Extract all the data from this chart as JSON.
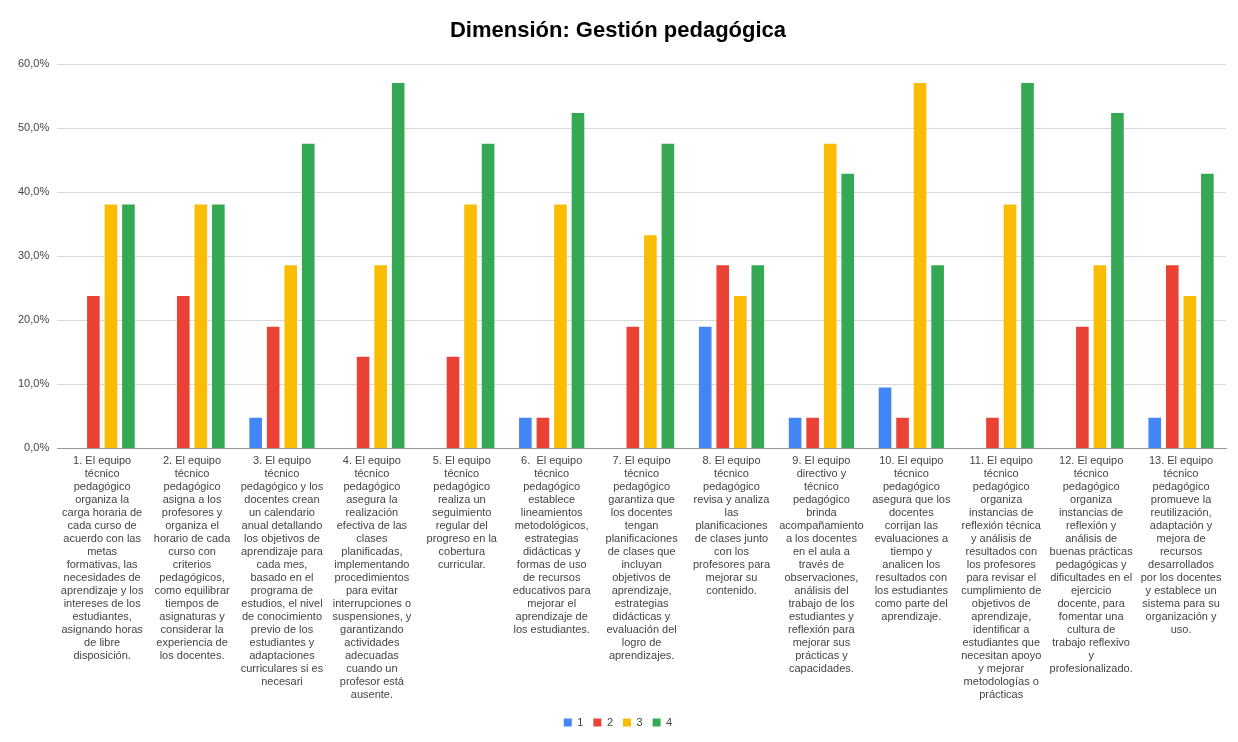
{
  "chart_data": {
    "type": "bar",
    "title": "Dimensión: Gestión pedagógica",
    "categories": [
      "1. El equipo técnico pedagógico organiza la carga horaria de cada curso de acuerdo con las metas formativas, las necesidades de aprendizaje y los intereses de los estudiantes, asignando horas de libre disposición.",
      "2. El equipo técnico pedagógico asigna a los profesores y organiza el horario de cada curso con criterios pedagógicos, como equilibrar tiempos de asignaturas y considerar la experiencia de los docentes.",
      "3. El equipo técnico pedagógico y los docentes crean un calendario anual detallando los objetivos de aprendizaje para cada mes, basado en el programa de estudios, el nivel de conocimiento previo de los estudiantes y adaptaciones curriculares si es necesari",
      "4. El equipo técnico pedagógico asegura la realización efectiva de las clases planificadas, implementando procedimientos para evitar interrupciones o suspensiones, y garantizando actividades adecuadas cuando un profesor está ausente.",
      "5. El equipo técnico pedagógico realiza un seguimiento regular del progreso en la cobertura curricular.",
      "6.  El equipo técnico pedagógico establece lineamientos metodológicos, estrategias didácticas y formas de uso de recursos educativos para mejorar el aprendizaje de los estudiantes.",
      "7. El equipo técnico pedagógico garantiza que los docentes tengan planificaciones de clases que incluyan objetivos de aprendizaje, estrategias didácticas y evaluación del logro de aprendizajes.",
      "8. El equipo técnico pedagógico revisa y analiza las planificaciones de clases junto con los profesores para mejorar su contenido.",
      "9. El equipo directivo y técnico pedagógico brinda acompañamiento a los docentes en el aula a través de observaciones, análisis del trabajo de los estudiantes y reflexión para mejorar sus prácticas y capacidades.",
      "10. El equipo técnico pedagógico asegura que los docentes corrijan las evaluaciones a tiempo y analicen los resultados con los estudiantes como parte del aprendizaje.",
      "11. El equipo técnico pedagógico organiza instancias de reflexión técnica y análisis de resultados con los profesores para revisar el cumplimiento de objetivos de aprendizaje, identificar a estudiantes que necesitan apoyo y mejorar metodologías o prácticas",
      "12. El equipo técnico pedagógico organiza instancias de reflexión y análisis de buenas prácticas pedagógicas y dificultades en el ejercicio docente, para fomentar una cultura de trabajo reflexivo y profesionalizado.",
      "13. El equipo técnico pedagógico promueve la reutilización, adaptación y mejora de recursos desarrollados por los docentes y establece un sistema para su organización y uso."
    ],
    "series": [
      {
        "name": "1",
        "color": "#4285f4",
        "values": [
          0,
          0,
          4.8,
          0,
          0,
          4.8,
          0,
          19.0,
          4.8,
          9.5,
          0,
          0,
          4.8
        ]
      },
      {
        "name": "2",
        "color": "#ea4335",
        "values": [
          23.8,
          23.8,
          19.0,
          14.3,
          14.3,
          4.8,
          19.0,
          28.6,
          4.8,
          4.8,
          4.8,
          19.0,
          28.6
        ]
      },
      {
        "name": "3",
        "color": "#fbbc04",
        "values": [
          38.1,
          38.1,
          28.6,
          28.6,
          38.1,
          38.1,
          33.3,
          23.8,
          47.6,
          57.1,
          38.1,
          28.6,
          23.8
        ]
      },
      {
        "name": "4",
        "color": "#34a853",
        "values": [
          38.1,
          38.1,
          47.6,
          57.1,
          47.6,
          52.4,
          47.6,
          28.6,
          42.9,
          28.6,
          57.1,
          52.4,
          42.9
        ]
      }
    ],
    "ylim": [
      0,
      60
    ],
    "yticks": [
      {
        "value": 0,
        "label": "0,0%"
      },
      {
        "value": 10,
        "label": "10,0%"
      },
      {
        "value": 20,
        "label": "20,0%"
      },
      {
        "value": 30,
        "label": "30,0%"
      },
      {
        "value": 40,
        "label": "40,0%"
      },
      {
        "value": 50,
        "label": "50,0%"
      },
      {
        "value": 60,
        "label": "60,0%"
      }
    ],
    "grid": "y",
    "legend": "bottom"
  }
}
